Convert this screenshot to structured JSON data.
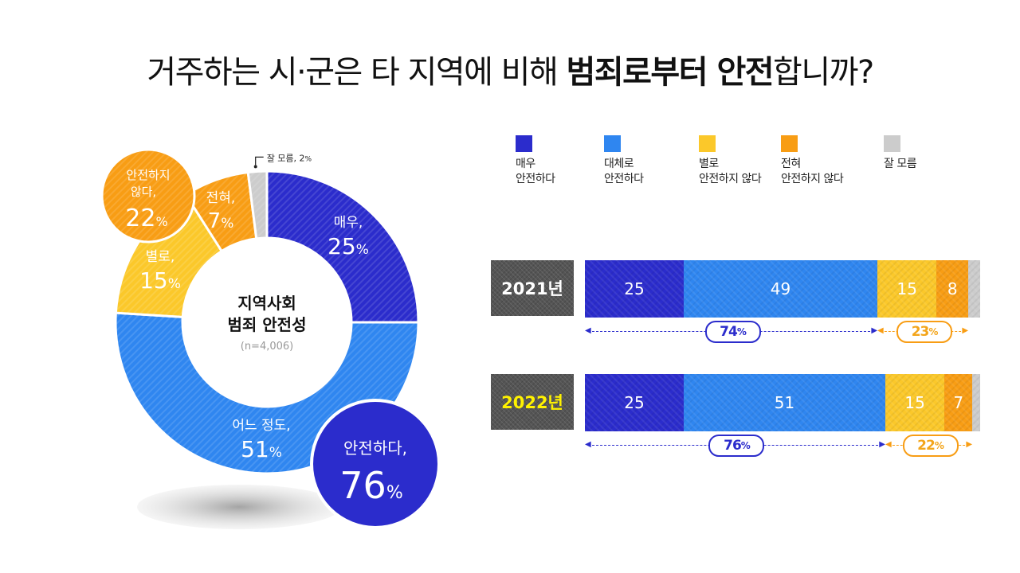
{
  "title": {
    "part1": "거주하는 시·군은 타 지역에 비해 ",
    "part2": "범죄로부터 안전",
    "part3": "합니까?"
  },
  "colors": {
    "very_safe": "#2b2ccc",
    "somewhat_safe": "#2f86f0",
    "not_very_safe": "#fbc82a",
    "not_at_all_safe": "#f89d14",
    "dont_know": "#cccccc",
    "year_2022_text": "#fff200"
  },
  "legend": [
    {
      "key": "very_safe",
      "label": "매우\n안전하다"
    },
    {
      "key": "somewhat_safe",
      "label": "대체로\n안전하다"
    },
    {
      "key": "not_very_safe",
      "label": "별로\n안전하지 않다"
    },
    {
      "key": "not_at_all_safe",
      "label": "전혀\n안전하지 않다"
    },
    {
      "key": "dont_know",
      "label": "잘 모름"
    }
  ],
  "chart_data": [
    {
      "type": "pie",
      "title": "지역사회 범죄 안전성",
      "title_line1": "지역사회",
      "title_line2": "범죄 안전성",
      "subtitle": "(n=4,006)",
      "slices": [
        {
          "key": "very_safe",
          "label": "매우,",
          "value": 25
        },
        {
          "key": "somewhat_safe",
          "label": "어느 정도,",
          "value": 51
        },
        {
          "key": "not_very_safe",
          "label": "별로,",
          "value": 15
        },
        {
          "key": "not_at_all_safe",
          "label": "전혀,",
          "value": 7
        },
        {
          "key": "dont_know",
          "label": "잘 모름,",
          "value": 2
        }
      ],
      "summaries": [
        {
          "key": "safe",
          "label": "안전하다,",
          "value": 76
        },
        {
          "key": "not_safe",
          "label": "안전하지 않다,",
          "label_line1": "안전하지",
          "label_line2": "않다,",
          "value": 22
        }
      ]
    },
    {
      "type": "bar",
      "orientation": "horizontal-stacked",
      "categories": [
        "2021년",
        "2022년"
      ],
      "series": [
        {
          "key": "very_safe",
          "name": "매우 안전하다",
          "values": [
            25,
            25
          ]
        },
        {
          "key": "somewhat_safe",
          "name": "대체로 안전하다",
          "values": [
            49,
            51
          ]
        },
        {
          "key": "not_very_safe",
          "name": "별로 안전하지 않다",
          "values": [
            15,
            15
          ]
        },
        {
          "key": "not_at_all_safe",
          "name": "전혀 안전하지 않다",
          "values": [
            8,
            7
          ]
        },
        {
          "key": "dont_know",
          "name": "잘 모름",
          "values": [
            3,
            2
          ]
        }
      ],
      "totals": {
        "safe": [
          74,
          76
        ],
        "not_safe": [
          23,
          22
        ]
      },
      "xlim": [
        0,
        100
      ],
      "legend_position": "top"
    }
  ],
  "units": {
    "percent": "%"
  }
}
